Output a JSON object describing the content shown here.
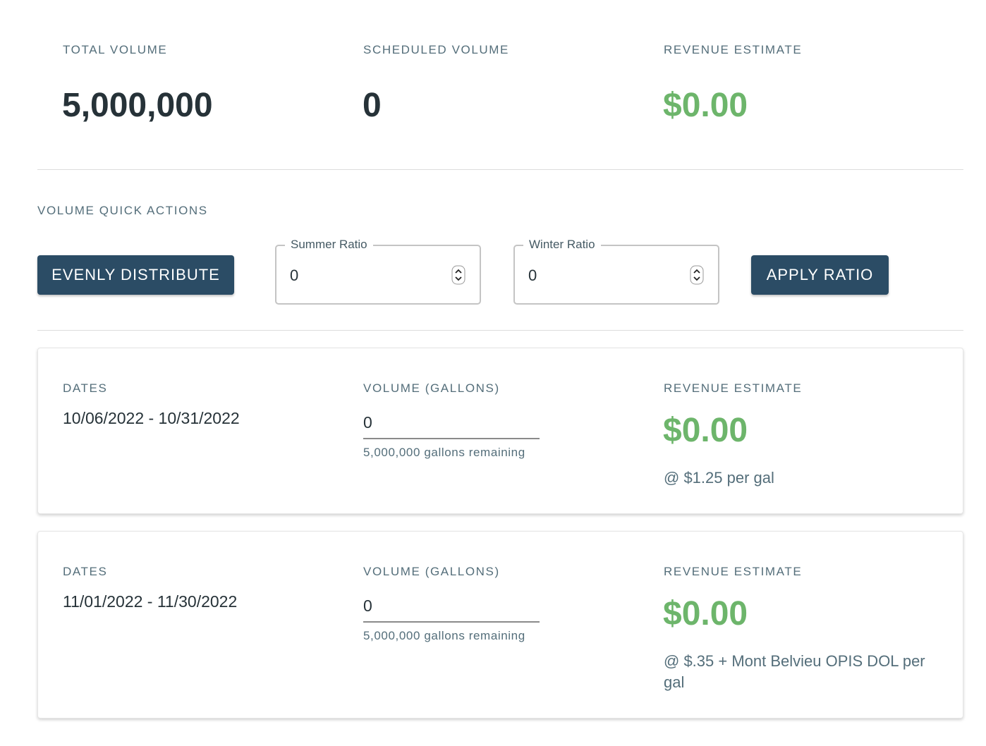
{
  "summary": [
    {
      "label": "TOTAL VOLUME",
      "value": "5,000,000"
    },
    {
      "label": "SCHEDULED VOLUME",
      "value": "0"
    },
    {
      "label": "REVENUE ESTIMATE",
      "value": "$0.00"
    }
  ],
  "quick_actions": {
    "title": "VOLUME QUICK ACTIONS",
    "evenly_button": "EVENLY DISTRIBUTE",
    "summer": {
      "label": "Summer Ratio",
      "value": "0"
    },
    "winter": {
      "label": "Winter Ratio",
      "value": "0"
    },
    "apply_button": "APPLY RATIO"
  },
  "periods": [
    {
      "dates_label": "DATES",
      "dates": "10/06/2022 - 10/31/2022",
      "volume_label": "VOLUME (GALLONS)",
      "volume": "0",
      "remaining": "5,000,000 gallons remaining",
      "revenue_label": "REVENUE ESTIMATE",
      "revenue": "$0.00",
      "rate": "@ $1.25 per gal"
    },
    {
      "dates_label": "DATES",
      "dates": "11/01/2022 - 11/30/2022",
      "volume_label": "VOLUME (GALLONS)",
      "volume": "0",
      "remaining": "5,000,000 gallons remaining",
      "revenue_label": "REVENUE ESTIMATE",
      "revenue": "$0.00",
      "rate": "@ $.35 + Mont Belvieu OPIS DOL per gal"
    }
  ]
}
